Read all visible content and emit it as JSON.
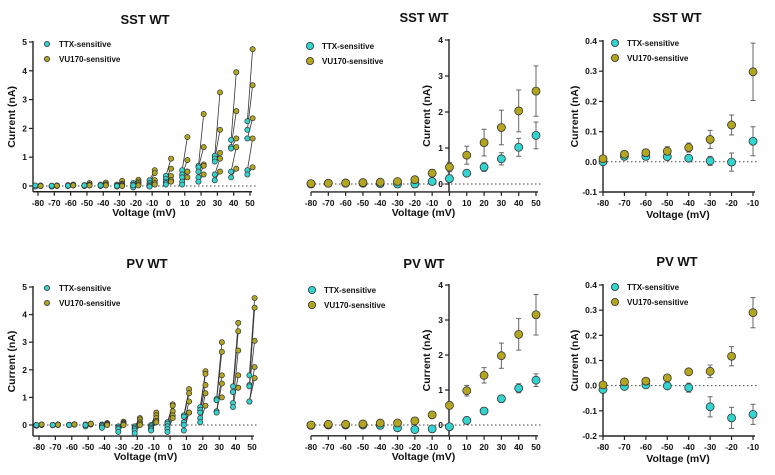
{
  "colors": {
    "TTX-sensitive": "#33d4d0",
    "VU170-sensitive": "#b3a520",
    "marker_edge": "#333333",
    "error_bar": "#666666",
    "pair_line": "#333333"
  },
  "chart_data": [
    {
      "type": "scatter",
      "style": "paired-individual",
      "title": "SST WT",
      "xlabel": "Voltage (mV)",
      "ylabel": "Current (nA)",
      "xticks": [
        -80,
        -70,
        -60,
        -50,
        -40,
        -30,
        -20,
        -10,
        0,
        10,
        20,
        30,
        40,
        50
      ],
      "yticks": [
        0,
        1,
        2,
        3,
        4,
        5
      ],
      "ylim": [
        -0.2,
        5
      ],
      "zero_line": "dotted",
      "legend": "top-left",
      "x": [
        -80,
        -70,
        -60,
        -50,
        -40,
        -30,
        -20,
        -10,
        0,
        10,
        20,
        30,
        40,
        50
      ],
      "series": [
        {
          "name": "TTX-sensitive",
          "cells": [
            [
              0,
              0,
              0,
              -0.02,
              0.02
            ],
            [
              0,
              0.01,
              0,
              -0.02,
              0.01
            ],
            [
              0.02,
              0.01,
              0,
              0.03,
              0.01
            ],
            [
              0.02,
              0.01,
              0,
              0.03,
              0.02
            ],
            [
              0.03,
              0.02,
              0,
              0.05,
              0.02
            ],
            [
              0.05,
              0.02,
              0,
              -0.02,
              0
            ],
            [
              0.1,
              0.05,
              0,
              -0.05,
              0.02
            ],
            [
              0.2,
              0.1,
              0.05,
              0,
              -0.02
            ],
            [
              0.35,
              0.25,
              0.15,
              0.1,
              0.05
            ],
            [
              0.55,
              0.4,
              0.3,
              0.15,
              0.05
            ],
            [
              0.7,
              0.65,
              0.5,
              0.3,
              0.15
            ],
            [
              1.05,
              0.95,
              0.85,
              0.4,
              0.2
            ],
            [
              1.6,
              1.35,
              1.3,
              0.5,
              0.3
            ],
            [
              2.25,
              1.95,
              1.65,
              0.55,
              0.4
            ]
          ]
        },
        {
          "name": "VU170-sensitive",
          "cells": [
            [
              0,
              0,
              0.01,
              0.02,
              0
            ],
            [
              0.02,
              0.01,
              0.02,
              0,
              0.01
            ],
            [
              0.05,
              0.03,
              0.02,
              0.04,
              0.02
            ],
            [
              0.1,
              0.05,
              0.02,
              0.04,
              0.02
            ],
            [
              0.12,
              0.06,
              0.03,
              0.05,
              0.02
            ],
            [
              0.18,
              0.08,
              0.05,
              0.02,
              0
            ],
            [
              0.22,
              0.15,
              0.1,
              0.05,
              0.02
            ],
            [
              0.55,
              0.45,
              0.2,
              0.1,
              0.05
            ],
            [
              0.95,
              0.6,
              0.35,
              0.2,
              0.15
            ],
            [
              1.7,
              0.9,
              0.5,
              0.3,
              0.5
            ],
            [
              2.5,
              1.35,
              0.75,
              0.7,
              0.4
            ],
            [
              3.25,
              1.95,
              1.15,
              0.95,
              0.5
            ],
            [
              3.95,
              2.6,
              1.65,
              1.35,
              0.6
            ],
            [
              4.75,
              3.5,
              2.35,
              1.65,
              0.65
            ]
          ]
        }
      ]
    },
    {
      "type": "scatter",
      "style": "mean-error",
      "title": "SST WT",
      "xlabel": "Voltage (mV)",
      "ylabel": "Current (nA)",
      "xticks": [
        -80,
        -70,
        -60,
        -50,
        -40,
        -30,
        -20,
        -10,
        0,
        10,
        20,
        30,
        40,
        50
      ],
      "yticks": [
        0,
        1,
        2,
        3,
        4
      ],
      "ylim": [
        -0.22,
        4
      ],
      "zero_line": "dotted",
      "legend": "top-left",
      "x": [
        -80,
        -70,
        -60,
        -50,
        -40,
        -30,
        -20,
        -10,
        0,
        10,
        20,
        30,
        40,
        50
      ],
      "series": [
        {
          "name": "TTX-sensitive",
          "values": [
            0,
            0.02,
            0.02,
            0.02,
            0.01,
            0,
            0,
            0.07,
            0.15,
            0.3,
            0.47,
            0.7,
            1.02,
            1.35
          ],
          "errors": [
            0.01,
            0.01,
            0.01,
            0.01,
            0.01,
            0.02,
            0.03,
            0.05,
            0.1,
            0.07,
            0.12,
            0.17,
            0.25,
            0.37
          ]
        },
        {
          "name": "VU170-sensitive",
          "values": [
            0.01,
            0.02,
            0.03,
            0.04,
            0.05,
            0.07,
            0.12,
            0.3,
            0.47,
            0.8,
            1.15,
            1.57,
            2.03,
            2.58
          ],
          "errors": [
            0.01,
            0.01,
            0.01,
            0.02,
            0.02,
            0.03,
            0.03,
            0.1,
            0.13,
            0.25,
            0.37,
            0.48,
            0.58,
            0.7
          ]
        }
      ]
    },
    {
      "type": "scatter",
      "style": "mean-error",
      "title": "SST WT",
      "xlabel": "Voltage (mV)",
      "ylabel": "Current (nA)",
      "xticks": [
        -80,
        -70,
        -60,
        -50,
        -40,
        -30,
        -20,
        -10
      ],
      "yticks": [
        -0.1,
        0.0,
        0.1,
        0.2,
        0.3,
        0.4
      ],
      "ylim": [
        -0.1,
        0.4
      ],
      "zero_line": "dotted",
      "legend": "top-left",
      "x": [
        -80,
        -70,
        -60,
        -50,
        -40,
        -30,
        -20,
        -10
      ],
      "series": [
        {
          "name": "TTX-sensitive",
          "values": [
            0,
            0.018,
            0.018,
            0.017,
            0.012,
            0.003,
            -0.001,
            0.068
          ],
          "errors": [
            0.003,
            0.01,
            0.01,
            0.01,
            0.01,
            0.015,
            0.03,
            0.048
          ]
        },
        {
          "name": "VU170-sensitive",
          "values": [
            0.01,
            0.025,
            0.03,
            0.035,
            0.047,
            0.074,
            0.122,
            0.298
          ],
          "errors": [
            0.004,
            0.01,
            0.012,
            0.015,
            0.015,
            0.03,
            0.033,
            0.095
          ]
        }
      ]
    },
    {
      "type": "scatter",
      "style": "paired-individual",
      "title": "PV WT",
      "xlabel": "Voltage (mV)",
      "ylabel": "Current (nA)",
      "xticks": [
        -80,
        -70,
        -60,
        -50,
        -40,
        -30,
        -20,
        -10,
        0,
        10,
        20,
        30,
        40,
        50
      ],
      "yticks": [
        0,
        1,
        2,
        3,
        4,
        5
      ],
      "ylim": [
        -0.4,
        5
      ],
      "zero_line": "dotted",
      "legend": "top-left",
      "x": [
        -80,
        -70,
        -60,
        -50,
        -40,
        -30,
        -20,
        -10,
        0,
        10,
        20,
        30,
        40,
        50
      ],
      "series": [
        {
          "name": "TTX-sensitive",
          "cells": [
            [
              0,
              -0.02,
              -0.03,
              0,
              0
            ],
            [
              0,
              0,
              -0.01,
              0,
              0
            ],
            [
              0,
              0.01,
              0,
              0,
              0
            ],
            [
              0.02,
              0,
              -0.03,
              -0.05,
              0
            ],
            [
              0.02,
              0,
              -0.05,
              -0.05,
              -0.1
            ],
            [
              -0.05,
              -0.1,
              -0.1,
              -0.15,
              -0.25
            ],
            [
              -0.05,
              -0.1,
              -0.15,
              -0.2,
              -0.3
            ],
            [
              0,
              -0.05,
              -0.1,
              -0.15,
              -0.2
            ],
            [
              0.1,
              0.05,
              -0.05,
              -0.15,
              -0.25
            ],
            [
              0.35,
              0.3,
              0.1,
              0,
              -0.2
            ],
            [
              0.65,
              0.55,
              0.45,
              0.25,
              0.1
            ],
            [
              0.95,
              0.9,
              0.5,
              0.45,
              0.9
            ],
            [
              1.4,
              1.2,
              0.8,
              0.65,
              1.2
            ],
            [
              1.8,
              1.45,
              1.4,
              0.85,
              0.85
            ]
          ]
        },
        {
          "name": "VU170-sensitive",
          "cells": [
            [
              0.02,
              0,
              0.01,
              0,
              0.02
            ],
            [
              0.02,
              0.01,
              0.02,
              0,
              0.01
            ],
            [
              0.03,
              0.02,
              0.02,
              0.01,
              0.02
            ],
            [
              0.05,
              0.03,
              0.02,
              0.02,
              0.04
            ],
            [
              0.07,
              0.05,
              0.03,
              0.02,
              0
            ],
            [
              0.12,
              0.08,
              0.05,
              0.02,
              0
            ],
            [
              0.25,
              0.2,
              0.1,
              0.05,
              0
            ],
            [
              0.45,
              0.35,
              0.25,
              0.15,
              0.1
            ],
            [
              0.75,
              0.7,
              0.5,
              0.35,
              0.25
            ],
            [
              1.3,
              1.15,
              0.85,
              0.45,
              0.45
            ],
            [
              1.95,
              1.85,
              1.45,
              1.15,
              0.7
            ],
            [
              3.0,
              2.65,
              1.8,
              1.5,
              1.0
            ],
            [
              3.7,
              3.4,
              2.7,
              1.8,
              1.35
            ],
            [
              4.6,
              4.25,
              3.05,
              2.1,
              1.7
            ]
          ]
        }
      ]
    },
    {
      "type": "scatter",
      "style": "mean-error",
      "title": "PV WT",
      "xlabel": "Voltage (mV)",
      "ylabel": "Current (nA)",
      "xticks": [
        -80,
        -70,
        -60,
        -50,
        -40,
        -30,
        -20,
        -10,
        0,
        10,
        20,
        30,
        40,
        50
      ],
      "yticks": [
        0,
        1,
        2,
        3,
        4
      ],
      "ylim": [
        -0.31,
        4
      ],
      "zero_line": "dotted",
      "legend": "top-left",
      "x": [
        -80,
        -70,
        -60,
        -50,
        -40,
        -30,
        -20,
        -10,
        0,
        10,
        20,
        30,
        40,
        50
      ],
      "series": [
        {
          "name": "TTX-sensitive",
          "values": [
            -0.01,
            0,
            0,
            0,
            -0.01,
            -0.08,
            -0.13,
            -0.11,
            -0.05,
            0.13,
            0.4,
            0.75,
            1.05,
            1.28
          ],
          "errors": [
            0.01,
            0.01,
            0.01,
            0.01,
            0.02,
            0.04,
            0.04,
            0.04,
            0.06,
            0.1,
            0.1,
            0.1,
            0.13,
            0.18
          ]
        },
        {
          "name": "VU170-sensitive",
          "values": [
            0,
            0.02,
            0.02,
            0.03,
            0.055,
            0.057,
            0.117,
            0.29,
            0.56,
            0.98,
            1.42,
            1.98,
            2.59,
            3.15
          ],
          "errors": [
            0.01,
            0.01,
            0.01,
            0.01,
            0.01,
            0.03,
            0.04,
            0.06,
            0.1,
            0.15,
            0.22,
            0.36,
            0.45,
            0.58
          ]
        }
      ]
    },
    {
      "type": "scatter",
      "style": "mean-error",
      "title": "PV WT",
      "xlabel": "Voltage (mV)",
      "ylabel": "Current (nA)",
      "xticks": [
        -80,
        -70,
        -60,
        -50,
        -40,
        -30,
        -20,
        -10
      ],
      "yticks": [
        -0.2,
        -0.1,
        0.0,
        0.1,
        0.2,
        0.3,
        0.4
      ],
      "ylim": [
        -0.2,
        0.4
      ],
      "zero_line": "dotted",
      "legend": "top-left",
      "x": [
        -80,
        -70,
        -60,
        -50,
        -40,
        -30,
        -20,
        -10
      ],
      "series": [
        {
          "name": "TTX-sensitive",
          "values": [
            -0.015,
            -0.003,
            0.003,
            -0.001,
            -0.008,
            -0.084,
            -0.128,
            -0.114
          ],
          "errors": [
            0.01,
            0.005,
            0.005,
            0.012,
            0.018,
            0.04,
            0.042,
            0.04
          ]
        },
        {
          "name": "VU170-sensitive",
          "values": [
            0.003,
            0.015,
            0.018,
            0.031,
            0.055,
            0.057,
            0.117,
            0.29
          ],
          "errors": [
            0.005,
            0.005,
            0.005,
            0.007,
            0.007,
            0.025,
            0.038,
            0.06
          ]
        }
      ]
    }
  ]
}
